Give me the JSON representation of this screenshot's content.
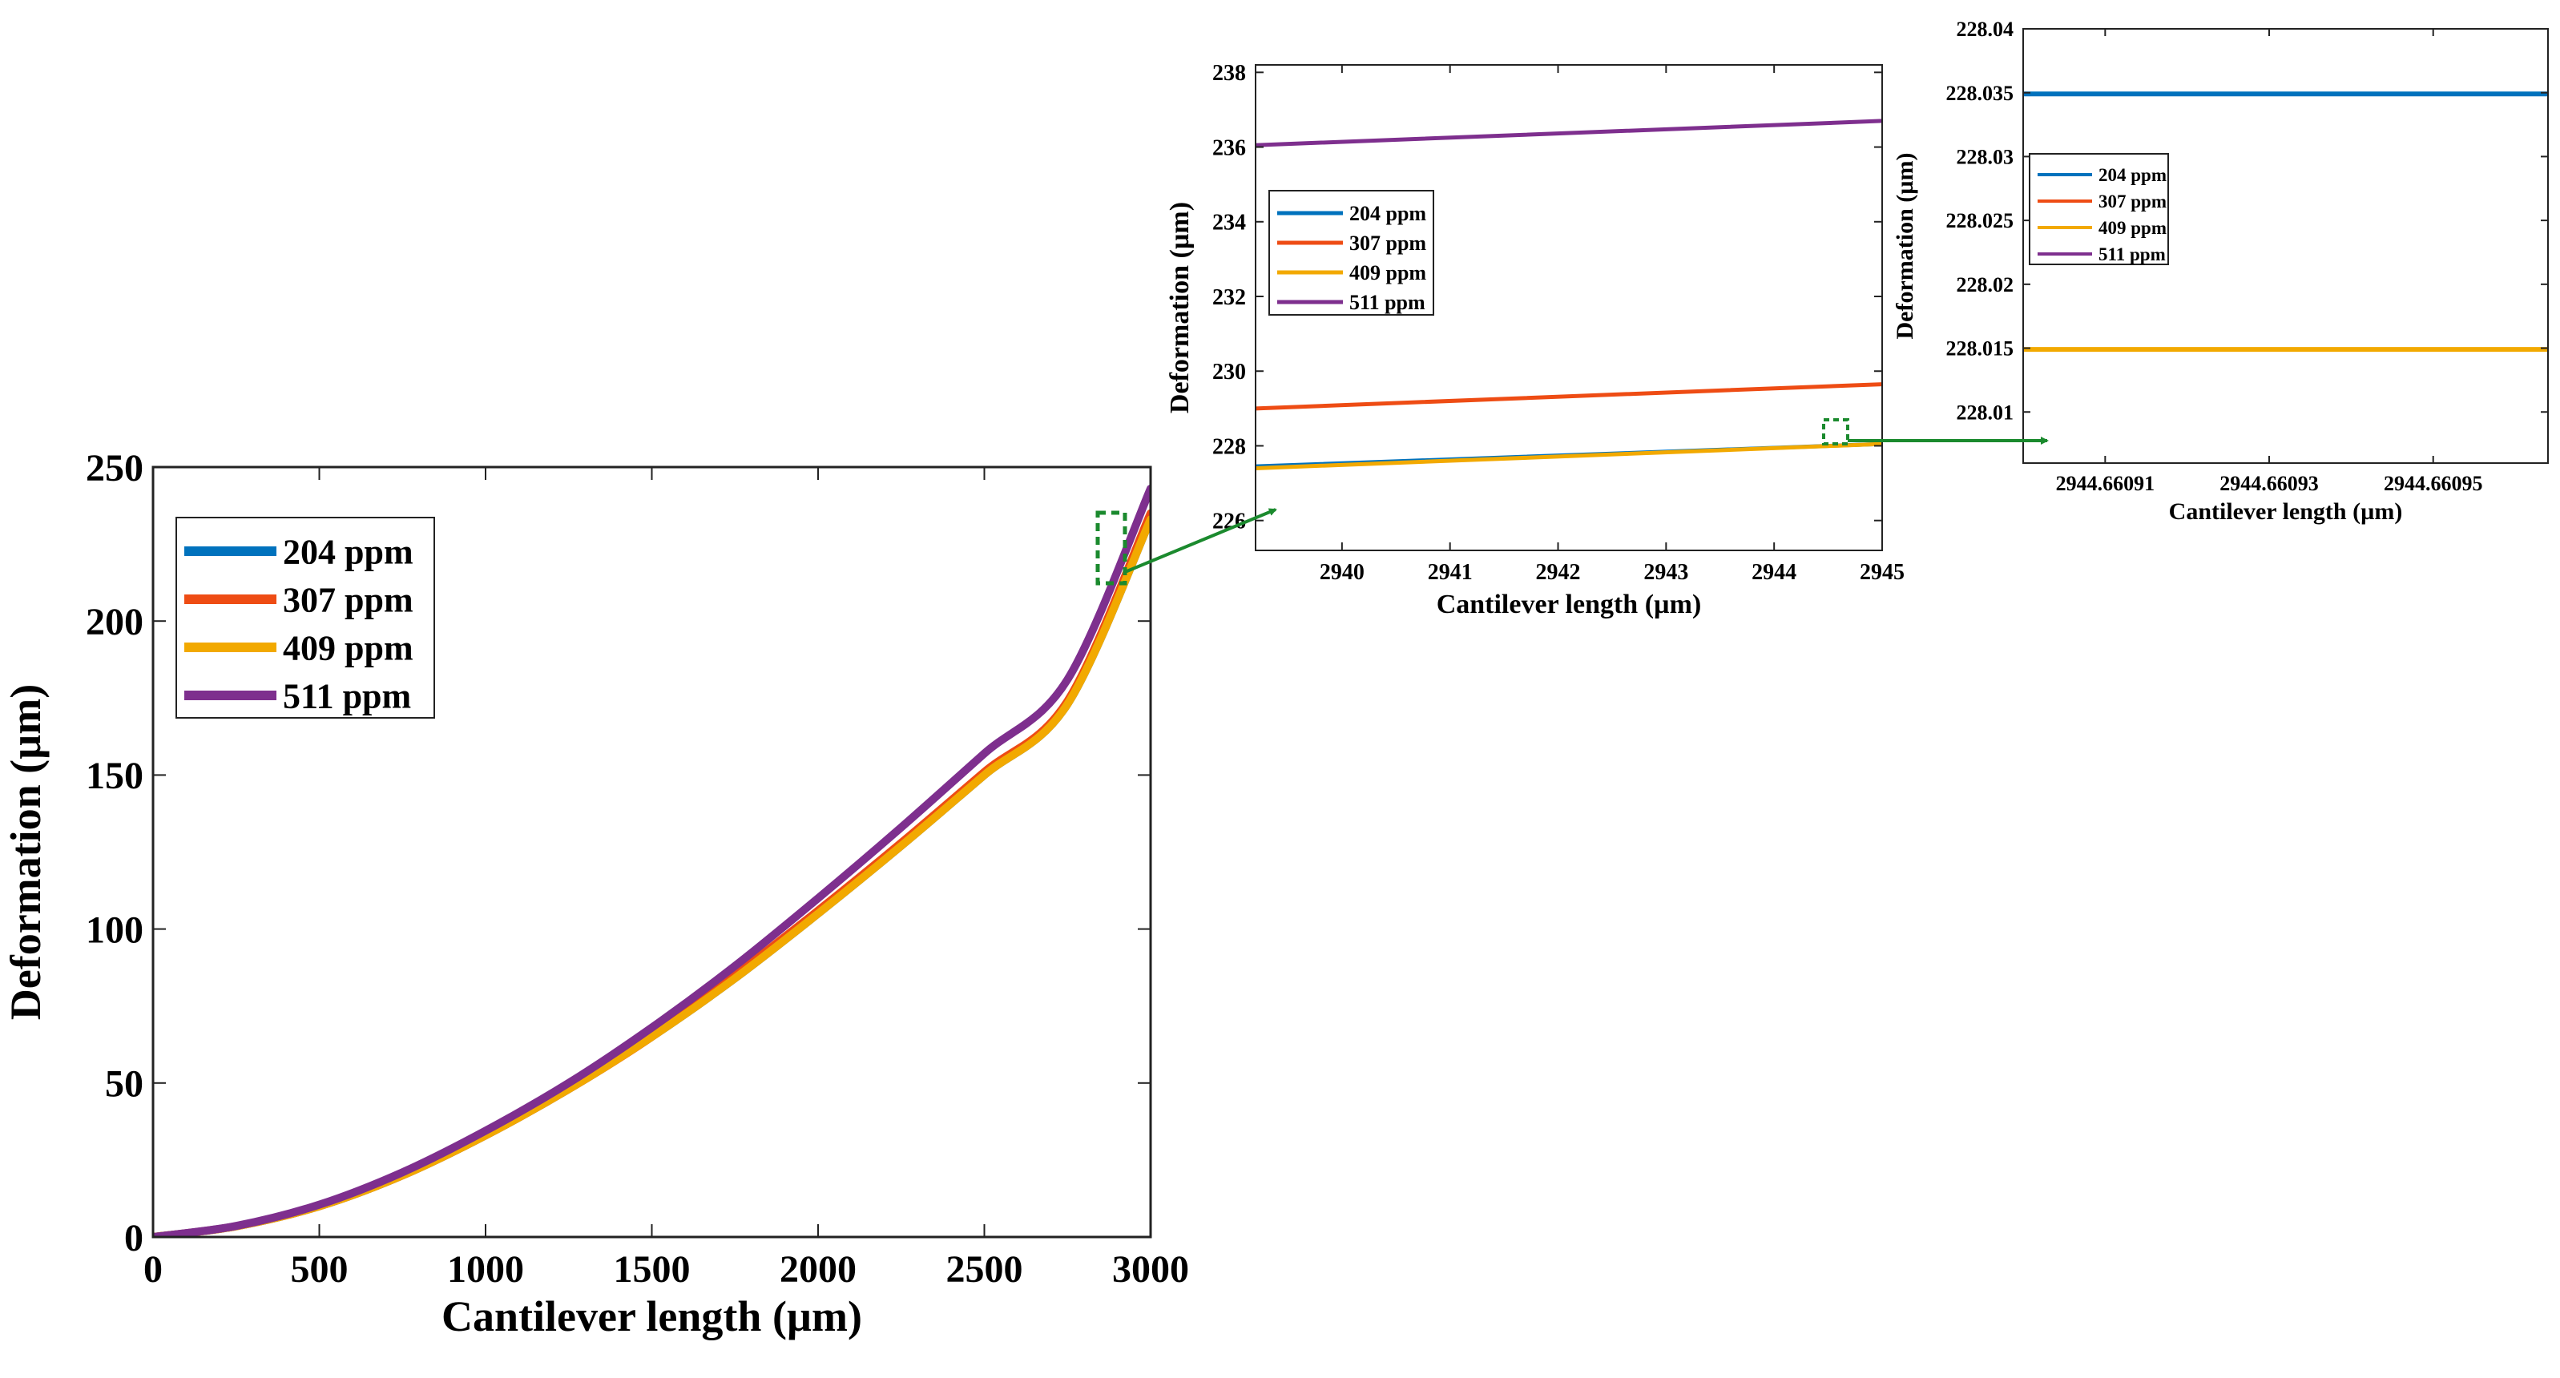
{
  "colors": {
    "c204": "#0072BD",
    "c307": "#EE4C14",
    "c409": "#F2A900",
    "c511": "#7E2F8E",
    "zoom": "#1B8A2E"
  },
  "chart_data": [
    {
      "id": "main",
      "type": "line",
      "title": "",
      "xlabel": "Cantilever length (µm)",
      "ylabel": "Deformation (µm)",
      "xlim": [
        0,
        3000
      ],
      "ylim": [
        0,
        250
      ],
      "xticks": [
        0,
        500,
        1000,
        1500,
        2000,
        2500,
        3000
      ],
      "yticks": [
        0,
        50,
        100,
        150,
        200,
        250
      ],
      "xtick_labels": [
        "0",
        "500",
        "1000",
        "1500",
        "2000",
        "2500",
        "3000"
      ],
      "ytick_labels": [
        "0",
        "50",
        "100",
        "150",
        "200",
        "250"
      ],
      "legend": [
        "204 ppm",
        "307 ppm",
        "409 ppm",
        "511 ppm"
      ],
      "legend_position": "top-left",
      "series": [
        {
          "name": "204 ppm",
          "x": [
            0,
            250,
            500,
            750,
            1000,
            1250,
            1500,
            1750,
            2000,
            2250,
            2500,
            2750,
            3000
          ],
          "y": [
            0,
            3.5,
            10,
            20,
            33,
            48,
            65,
            84,
            105,
            127,
            150,
            173,
            233
          ]
        },
        {
          "name": "307 ppm",
          "x": [
            0,
            250,
            500,
            750,
            1000,
            1250,
            1500,
            1750,
            2000,
            2250,
            2500,
            2750,
            3000
          ],
          "y": [
            0,
            3.5,
            10,
            20,
            33,
            48,
            65,
            85,
            106,
            128,
            151,
            174,
            235
          ]
        },
        {
          "name": "409 ppm",
          "x": [
            0,
            250,
            500,
            750,
            1000,
            1250,
            1500,
            1750,
            2000,
            2250,
            2500,
            2750,
            3000
          ],
          "y": [
            0,
            3.5,
            10,
            20,
            33,
            48,
            65,
            84,
            105,
            127,
            150,
            173,
            233
          ]
        },
        {
          "name": "511 ppm",
          "x": [
            0,
            250,
            500,
            750,
            1000,
            1250,
            1500,
            1750,
            2000,
            2250,
            2500,
            2750,
            3000
          ],
          "y": [
            0,
            3.6,
            10.5,
            21,
            34.5,
            50,
            68,
            88,
            110,
            133,
            157,
            181,
            243
          ]
        }
      ]
    },
    {
      "id": "zoom1",
      "type": "line",
      "title": "",
      "xlabel": "Cantilever length (µm)",
      "ylabel": "Deformation (µm)",
      "xlim": [
        2939.2,
        2945
      ],
      "ylim": [
        225.2,
        238.2
      ],
      "xticks": [
        2940,
        2941,
        2942,
        2943,
        2944,
        2945
      ],
      "yticks": [
        226,
        228,
        230,
        232,
        234,
        236,
        238
      ],
      "xtick_labels": [
        "2940",
        "2941",
        "2942",
        "2943",
        "2944",
        "2945"
      ],
      "ytick_labels": [
        "226",
        "228",
        "230",
        "232",
        "234",
        "236",
        "238"
      ],
      "legend": [
        "204 ppm",
        "307 ppm",
        "409 ppm",
        "511 ppm"
      ],
      "legend_position": "middle-left",
      "series": [
        {
          "name": "204 ppm",
          "x": [
            2939.2,
            2945
          ],
          "y": [
            227.45,
            228.05
          ]
        },
        {
          "name": "307 ppm",
          "x": [
            2939.2,
            2945
          ],
          "y": [
            229.0,
            229.65
          ]
        },
        {
          "name": "409 ppm",
          "x": [
            2939.2,
            2945
          ],
          "y": [
            227.4,
            228.05
          ]
        },
        {
          "name": "511 ppm",
          "x": [
            2939.2,
            2945
          ],
          "y": [
            236.05,
            236.7
          ]
        }
      ]
    },
    {
      "id": "zoom2",
      "type": "line",
      "title": "",
      "xlabel": "Cantilever length (µm)",
      "ylabel": "Deformation (µm)",
      "xlim": [
        2944.6609,
        2944.660964
      ],
      "ylim": [
        228.006,
        228.04
      ],
      "xticks": [
        2944.66091,
        2944.66093,
        2944.66095
      ],
      "yticks": [
        228.01,
        228.015,
        228.02,
        228.025,
        228.03,
        228.035,
        228.04
      ],
      "xtick_labels": [
        "2944.66091",
        "2944.66093",
        "2944.66095"
      ],
      "ytick_labels": [
        "228.01",
        "228.015",
        "228.02",
        "228.025",
        "228.03",
        "228.035",
        "228.04"
      ],
      "legend": [
        "204 ppm",
        "307 ppm",
        "409 ppm",
        "511 ppm"
      ],
      "legend_position": "top-left",
      "series": [
        {
          "name": "204 ppm",
          "x": [
            2944.6609,
            2944.660964
          ],
          "y": [
            228.0349,
            228.0349
          ]
        },
        {
          "name": "409 ppm",
          "x": [
            2944.6609,
            2944.660964
          ],
          "y": [
            228.0149,
            228.0149
          ]
        }
      ]
    }
  ]
}
